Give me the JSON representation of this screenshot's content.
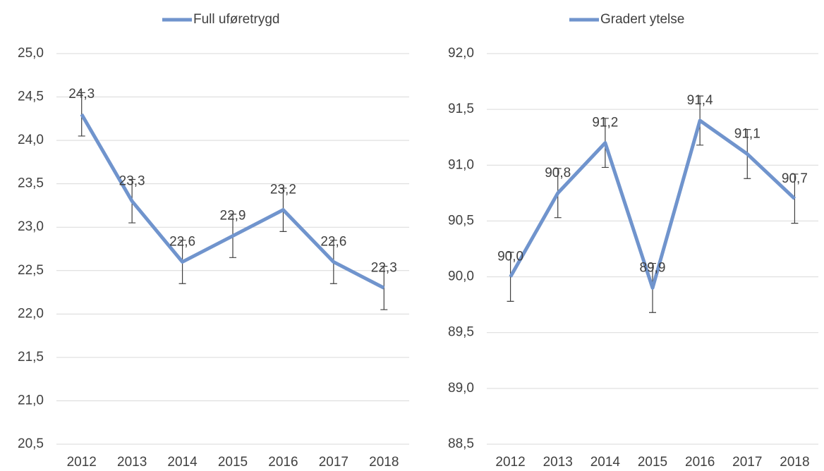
{
  "chart_data": [
    {
      "type": "line",
      "categories": [
        "2012",
        "2013",
        "2014",
        "2015",
        "2016",
        "2017",
        "2018"
      ],
      "series": [
        {
          "name": "Full uføretrygd",
          "color": "#7094cd",
          "values": [
            24.3,
            23.3,
            22.6,
            22.9,
            23.2,
            22.6,
            22.3
          ],
          "value_labels": [
            "24,3",
            "23,3",
            "22,6",
            "22,9",
            "23,2",
            "22,6",
            "22,3"
          ],
          "errors": [
            0.25,
            0.25,
            0.25,
            0.25,
            0.25,
            0.25,
            0.25
          ]
        }
      ],
      "ylim": [
        20.5,
        25.0
      ],
      "yticks": [
        {
          "value": 20.5,
          "label": "20,5"
        },
        {
          "value": 21.0,
          "label": "21,0"
        },
        {
          "value": 21.5,
          "label": "21,5"
        },
        {
          "value": 22.0,
          "label": "22,0"
        },
        {
          "value": 22.5,
          "label": "22,5"
        },
        {
          "value": 23.0,
          "label": "23,0"
        },
        {
          "value": 23.5,
          "label": "23,5"
        },
        {
          "value": 24.0,
          "label": "24,0"
        },
        {
          "value": 24.5,
          "label": "24,5"
        },
        {
          "value": 25.0,
          "label": "25,0"
        }
      ],
      "grid": true,
      "legend": "top"
    },
    {
      "type": "line",
      "categories": [
        "2012",
        "2013",
        "2014",
        "2015",
        "2016",
        "2017",
        "2018"
      ],
      "series": [
        {
          "name": "Gradert ytelse",
          "color": "#7094cd",
          "values": [
            90.0,
            90.75,
            91.2,
            89.9,
            91.4,
            91.1,
            90.7
          ],
          "value_labels": [
            "90,0",
            "90,8",
            "91,2",
            "89,9",
            "91,4",
            "91,1",
            "90,7"
          ],
          "errors": [
            0.22,
            0.22,
            0.22,
            0.22,
            0.22,
            0.22,
            0.22
          ]
        }
      ],
      "ylim": [
        88.5,
        92.0
      ],
      "yticks": [
        {
          "value": 88.5,
          "label": "88,5"
        },
        {
          "value": 89.0,
          "label": "89,0"
        },
        {
          "value": 89.5,
          "label": "89,5"
        },
        {
          "value": 90.0,
          "label": "90,0"
        },
        {
          "value": 90.5,
          "label": "90,5"
        },
        {
          "value": 91.0,
          "label": "91,0"
        },
        {
          "value": 91.5,
          "label": "91,5"
        },
        {
          "value": 92.0,
          "label": "92,0"
        }
      ],
      "grid": true,
      "legend": "top"
    }
  ]
}
